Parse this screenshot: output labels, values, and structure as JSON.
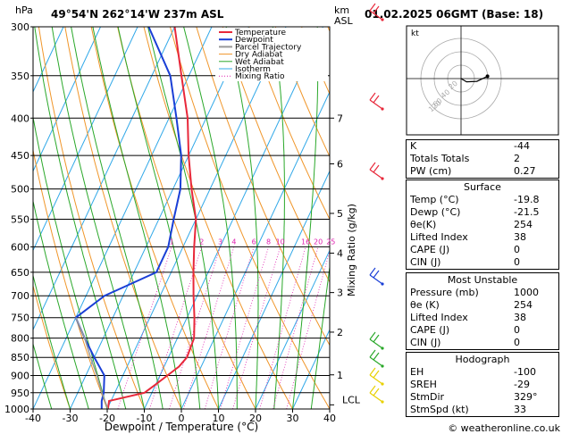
{
  "header": {
    "pressure_unit": "hPa",
    "location": "49°54'N  262°14'W  237m  ASL",
    "km_label": "km",
    "asl_label": "ASL",
    "datetime": "01.02.2025  06GMT  (Base: 18)"
  },
  "chart_data": {
    "type": "line",
    "xlabel": "Dewpoint / Temperature (°C)",
    "ylabel_right": "Mixing Ratio (g/kg)",
    "xlim": [
      -40,
      40
    ],
    "ylim": [
      1000,
      300
    ],
    "x_ticks": [
      -40,
      -30,
      -20,
      -10,
      0,
      10,
      20,
      30,
      40
    ],
    "pressure_levels": [
      300,
      350,
      400,
      450,
      500,
      550,
      600,
      650,
      700,
      750,
      800,
      850,
      900,
      950,
      1000
    ],
    "km_ticks": [
      {
        "km": "7",
        "p": 400
      },
      {
        "km": "6",
        "p": 462
      },
      {
        "km": "5",
        "p": 540
      },
      {
        "km": "4",
        "p": 612
      },
      {
        "km": "3",
        "p": 693
      },
      {
        "km": "2",
        "p": 785
      },
      {
        "km": "1",
        "p": 898
      }
    ],
    "lcl": {
      "label": "LCL",
      "p": 987
    },
    "mixing_ratio_labels": [
      "1",
      "2",
      "3",
      "4",
      "6",
      "8",
      "10",
      "16",
      "20",
      "25"
    ],
    "mixing_ratio_values": [
      1,
      2,
      3,
      4,
      6,
      8,
      10,
      16,
      20,
      25
    ],
    "legend": [
      "Temperature",
      "Dewpoint",
      "Parcel Trajectory",
      "Dry Adiabat",
      "Wet Adiabat",
      "Isotherm",
      "Mixing Ratio"
    ],
    "series": [
      {
        "name": "Temperature",
        "color": "#e8283a",
        "points": [
          [
            1000,
            -19.8
          ],
          [
            975,
            -20.5
          ],
          [
            950,
            -12
          ],
          [
            925,
            -10
          ],
          [
            900,
            -8
          ],
          [
            875,
            -6
          ],
          [
            850,
            -5
          ],
          [
            800,
            -5.5
          ],
          [
            750,
            -8
          ],
          [
            700,
            -11
          ],
          [
            650,
            -14
          ],
          [
            600,
            -17
          ],
          [
            550,
            -20
          ],
          [
            500,
            -25
          ],
          [
            450,
            -30
          ],
          [
            400,
            -35
          ],
          [
            350,
            -42
          ],
          [
            300,
            -50
          ]
        ]
      },
      {
        "name": "Dewpoint",
        "color": "#1a3fd6",
        "points": [
          [
            1000,
            -21.5
          ],
          [
            975,
            -22.5
          ],
          [
            950,
            -23
          ],
          [
            900,
            -25
          ],
          [
            850,
            -30
          ],
          [
            800,
            -35
          ],
          [
            750,
            -40
          ],
          [
            700,
            -35
          ],
          [
            650,
            -24
          ],
          [
            600,
            -24
          ],
          [
            550,
            -26
          ],
          [
            500,
            -28
          ],
          [
            450,
            -32
          ],
          [
            400,
            -38
          ],
          [
            350,
            -45
          ],
          [
            300,
            -57
          ]
        ]
      },
      {
        "name": "Parcel Trajectory",
        "color": "#999999",
        "points": [
          [
            1000,
            -19.8
          ],
          [
            950,
            -23.5
          ],
          [
            900,
            -27
          ],
          [
            850,
            -31
          ],
          [
            800,
            -35
          ],
          [
            750,
            -40
          ]
        ]
      }
    ]
  },
  "hodograph": {
    "unit_label": "kt",
    "ring_labels": [
      "20",
      "40",
      "60",
      "120"
    ],
    "points": [
      [
        329,
        0
      ],
      [
        300,
        8
      ],
      [
        280,
        20
      ],
      [
        265,
        33
      ]
    ]
  },
  "indices": [
    {
      "label": "K",
      "value": "-44"
    },
    {
      "label": "Totals Totals",
      "value": "2"
    },
    {
      "label": "PW (cm)",
      "value": "0.27"
    }
  ],
  "surface": {
    "title": "Surface",
    "rows": [
      {
        "label": "Temp (°C)",
        "value": "-19.8"
      },
      {
        "label": "Dewp (°C)",
        "value": "-21.5"
      },
      {
        "label": "θe(K)",
        "value": "254"
      },
      {
        "label": "Lifted Index",
        "value": "38"
      },
      {
        "label": "CAPE (J)",
        "value": "0"
      },
      {
        "label": "CIN (J)",
        "value": "0"
      }
    ]
  },
  "most_unstable": {
    "title": "Most Unstable",
    "rows": [
      {
        "label": "Pressure (mb)",
        "value": "1000"
      },
      {
        "label": "θe (K)",
        "value": "254"
      },
      {
        "label": "Lifted Index",
        "value": "38"
      },
      {
        "label": "CAPE (J)",
        "value": "0"
      },
      {
        "label": "CIN (J)",
        "value": "0"
      }
    ]
  },
  "hodograph_table": {
    "title": "Hodograph",
    "rows": [
      {
        "label": "EH",
        "value": "-100"
      },
      {
        "label": "SREH",
        "value": "-29"
      },
      {
        "label": "StmDir",
        "value": "329°"
      },
      {
        "label": "StmSpd (kt)",
        "value": "33"
      }
    ]
  },
  "copyright": "© weatheronline.co.uk",
  "colors": {
    "temperature": "#e8283a",
    "dewpoint": "#1a3fd6",
    "parcel": "#999999",
    "dry_adiabat": "#f0962a",
    "wet_adiabat": "#2aa82a",
    "isotherm": "#30a8e8",
    "mixing_ratio": "#e020b0",
    "wind_red": "#e8283a",
    "wind_blue": "#1a3fd6",
    "wind_green": "#2aa82a",
    "wind_yellow": "#e8d000"
  }
}
